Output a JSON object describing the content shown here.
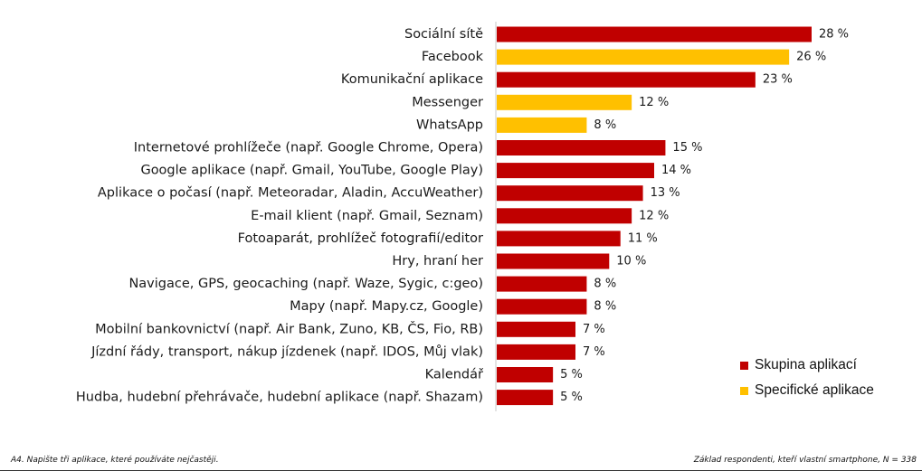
{
  "chart_data": {
    "type": "bar",
    "orientation": "horizontal",
    "categories": [
      "Sociální sítě",
      "Facebook",
      "Komunikační aplikace",
      "Messenger",
      "WhatsApp",
      "Internetové prohlížeče (např. Google Chrome, Opera)",
      "Google aplikace (např. Gmail, YouTube, Google Play)",
      "Aplikace o počasí (např. Meteoradar, Aladin, AccuWeather)",
      "E-mail klient (např. Gmail, Seznam)",
      "Fotoaparát, prohlížeč fotografií/editor",
      "Hry, hraní her",
      "Navigace, GPS, geocaching (např. Waze, Sygic, c:geo)",
      "Mapy (např. Mapy.cz, Google)",
      "Mobilní bankovnictví (např. Air Bank, Zuno, KB, ČS, Fio, RB)",
      "Jízdní řády, transport, nákup jízdenek (např. IDOS, Můj vlak)",
      "Kalendář",
      "Hudba, hudební přehrávače, hudební aplikace (např. Shazam)"
    ],
    "values": [
      28,
      26,
      23,
      12,
      8,
      15,
      14,
      13,
      12,
      11,
      10,
      8,
      8,
      7,
      7,
      5,
      5
    ],
    "value_labels": [
      "28 %",
      "26 %",
      "23 %",
      "12 %",
      "8 %",
      "15 %",
      "14 %",
      "13 %",
      "12 %",
      "11 %",
      "10 %",
      "8 %",
      "8 %",
      "7 %",
      "7 %",
      "5 %",
      "5 %"
    ],
    "groups": [
      "group",
      "specific",
      "group",
      "specific",
      "specific",
      "group",
      "group",
      "group",
      "group",
      "group",
      "group",
      "group",
      "group",
      "group",
      "group",
      "group",
      "group"
    ],
    "unit": "%",
    "xlim": [
      0,
      28
    ],
    "grid": false,
    "legend": [
      {
        "key": "group",
        "label": "Skupina aplikací",
        "color": "#c00000"
      },
      {
        "key": "specific",
        "label": "Specifické aplikace",
        "color": "#ffc000"
      }
    ],
    "legend_position": "bottom-right"
  },
  "footer": {
    "question": "A4. Napište tři aplikace, které používáte nejčastěji.",
    "base": "Základ respondenti, kteří vlastní smartphone, N = 338"
  }
}
